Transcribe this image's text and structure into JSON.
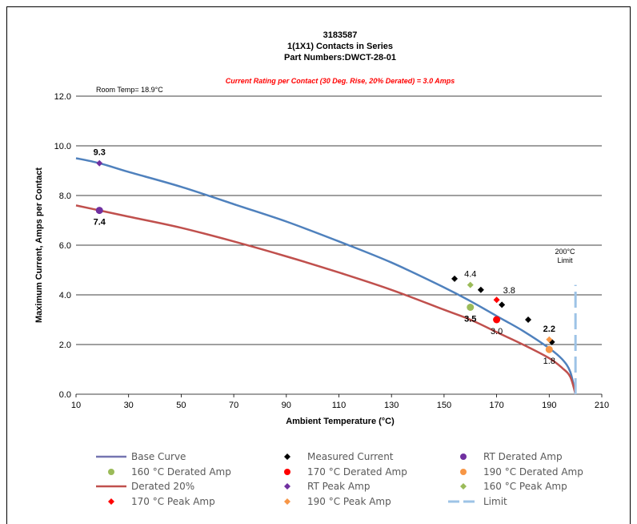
{
  "chart_data": {
    "type": "line",
    "title": "3183587",
    "subtitle_lines": [
      "1(1X1) Contacts in Series",
      "Part Numbers:DWCT-28-01"
    ],
    "rating_note": "Current Rating per Contact (30 Deg. Rise, 20% Derated)  = 3.0 Amps",
    "room_temp_note": "Room Temp= 18.9°C",
    "limit_note": [
      "200°C",
      "Limit"
    ],
    "xlabel": "Ambient Temperature (°C)",
    "ylabel": "Maximum Current, Amps per Contact",
    "xlim": [
      10,
      210
    ],
    "ylim": [
      0,
      12
    ],
    "x_ticks": [
      10,
      30,
      50,
      70,
      90,
      110,
      130,
      150,
      170,
      190,
      210
    ],
    "y_ticks": [
      "0.0",
      "2.0",
      "4.0",
      "6.0",
      "8.0",
      "10.0",
      "12.0"
    ],
    "grid": "horizontal",
    "legend_position": "bottom",
    "colors": {
      "base": "#4f81bd",
      "derated": "#c0504d",
      "measured": "#000000",
      "rt": "#7030a0",
      "c160": "#9bbb59",
      "c170": "#ff0000",
      "c190": "#f79646",
      "limit": "#9dc3e6",
      "legend_base": "#7575b0",
      "legend_derated": "#c0504d"
    },
    "series": [
      {
        "key": "base",
        "name": "Base Curve",
        "x": [
          10,
          18.9,
          30,
          50,
          70,
          90,
          110,
          130,
          150,
          160,
          170,
          180,
          190,
          195,
          198,
          200
        ],
        "values": [
          9.5,
          9.3,
          8.95,
          8.35,
          7.65,
          6.95,
          6.15,
          5.3,
          4.3,
          3.75,
          3.15,
          2.55,
          1.85,
          1.4,
          0.9,
          0.0
        ]
      },
      {
        "key": "derated",
        "name": "Derated 20%",
        "x": [
          10,
          18.9,
          30,
          50,
          70,
          90,
          110,
          130,
          150,
          160,
          170,
          180,
          190,
          195,
          198,
          200
        ],
        "values": [
          7.6,
          7.4,
          7.15,
          6.7,
          6.15,
          5.55,
          4.9,
          4.2,
          3.4,
          3.0,
          2.5,
          2.0,
          1.45,
          1.05,
          0.7,
          0.0
        ]
      },
      {
        "key": "limit",
        "name": "Limit",
        "x": [
          200,
          200
        ],
        "values": [
          0,
          4.4
        ]
      }
    ],
    "points": [
      {
        "key": "measured",
        "name": "Measured Current",
        "shape": "diamond",
        "x": [
          154,
          164,
          172,
          182,
          191
        ],
        "values": [
          4.65,
          4.2,
          3.6,
          3.0,
          2.1
        ]
      },
      {
        "key": "rt_derated",
        "name": "RT Derated Amp",
        "shape": "circle",
        "color_key": "rt",
        "x": [
          18.9
        ],
        "values": [
          7.4
        ]
      },
      {
        "key": "c160_derated",
        "name": "160 °C Derated Amp",
        "shape": "circle",
        "color_key": "c160",
        "x": [
          160
        ],
        "values": [
          3.5
        ]
      },
      {
        "key": "c170_derated",
        "name": "170 °C Derated Amp",
        "shape": "circle",
        "color_key": "c170",
        "x": [
          170
        ],
        "values": [
          3.0
        ]
      },
      {
        "key": "c190_derated",
        "name": "190 °C Derated Amp",
        "shape": "circle",
        "color_key": "c190",
        "x": [
          190
        ],
        "values": [
          1.8
        ]
      },
      {
        "key": "rt_peak",
        "name": "RT Peak Amp",
        "shape": "diamond",
        "color_key": "rt",
        "x": [
          18.9
        ],
        "values": [
          9.3
        ]
      },
      {
        "key": "c160_peak",
        "name": "160 °C Peak Amp",
        "shape": "diamond",
        "color_key": "c160",
        "x": [
          160
        ],
        "values": [
          4.4
        ]
      },
      {
        "key": "c170_peak",
        "name": "170 °C Peak Amp",
        "shape": "diamond",
        "color_key": "c170",
        "x": [
          170
        ],
        "values": [
          3.8
        ]
      },
      {
        "key": "c190_peak",
        "name": "190 °C Peak Amp",
        "shape": "diamond",
        "color_key": "c190",
        "x": [
          190
        ],
        "values": [
          2.2
        ]
      }
    ],
    "data_labels": [
      {
        "text": "9.3",
        "x": 18.9,
        "y": 9.3,
        "bold": true,
        "anchor": "above"
      },
      {
        "text": "7.4",
        "x": 18.9,
        "y": 7.4,
        "bold": true,
        "anchor": "below"
      },
      {
        "text": "4.4",
        "x": 160,
        "y": 4.4,
        "bold": false,
        "anchor": "above"
      },
      {
        "text": "3.5",
        "x": 160,
        "y": 3.5,
        "bold": true,
        "anchor": "below"
      },
      {
        "text": "3.8",
        "x": 170,
        "y": 3.8,
        "bold": false,
        "anchor": "above-right"
      },
      {
        "text": "3.0",
        "x": 170,
        "y": 3.0,
        "bold": false,
        "anchor": "below"
      },
      {
        "text": "2.2",
        "x": 190,
        "y": 2.2,
        "bold": true,
        "anchor": "above"
      },
      {
        "text": "1.8",
        "x": 190,
        "y": 1.8,
        "bold": false,
        "anchor": "below"
      }
    ],
    "legend": [
      [
        {
          "label": "Base Curve",
          "type": "line",
          "color_key": "legend_base"
        },
        {
          "label": "Measured Current",
          "type": "diamond",
          "color_key": "measured"
        },
        {
          "label": "RT Derated Amp",
          "type": "circle",
          "color_key": "rt"
        }
      ],
      [
        {
          "label": "160 °C Derated Amp",
          "type": "circle",
          "color_key": "c160"
        },
        {
          "label": "170 °C Derated Amp",
          "type": "circle",
          "color_key": "c170"
        },
        {
          "label": "190 °C Derated Amp",
          "type": "circle",
          "color_key": "c190"
        }
      ],
      [
        {
          "label": "Derated 20%",
          "type": "line",
          "color_key": "legend_derated"
        },
        {
          "label": "RT Peak Amp",
          "type": "diamond",
          "color_key": "rt"
        },
        {
          "label": "160 °C Peak Amp",
          "type": "diamond",
          "color_key": "c160"
        }
      ],
      [
        {
          "label": "170 °C Peak Amp",
          "type": "diamond",
          "color_key": "c170"
        },
        {
          "label": "190 °C Peak Amp",
          "type": "diamond",
          "color_key": "c190"
        },
        {
          "label": "Limit",
          "type": "dash",
          "color_key": "limit"
        }
      ]
    ]
  }
}
